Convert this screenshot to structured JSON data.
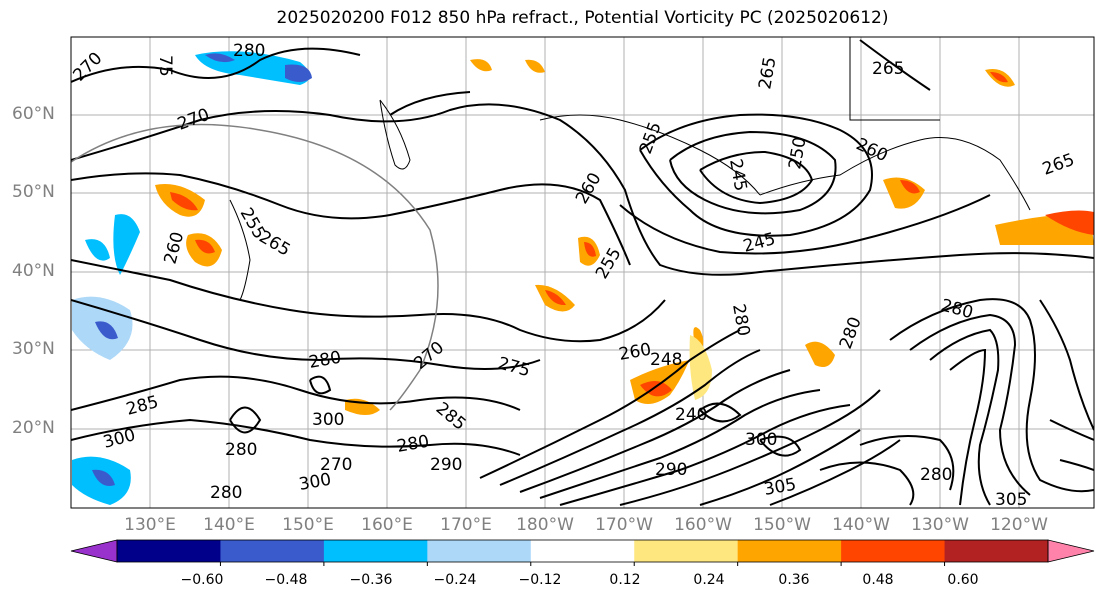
{
  "title": "2025020200 F012 850 hPa refract., Potential Vorticity PC (2025020612)",
  "lat_labels": [
    "60°N",
    "50°N",
    "40°N",
    "30°N",
    "20°N"
  ],
  "lon_labels": [
    "130°E",
    "140°E",
    "150°E",
    "160°E",
    "170°E",
    "180°W",
    "170°W",
    "160°W",
    "150°W",
    "140°W",
    "130°W",
    "120°W"
  ],
  "colorbar": {
    "colors": [
      "#9932CC",
      "#00008B",
      "#3A5BCC",
      "#00BFFF",
      "#ADD8F8",
      "#FFFFFF",
      "#FFE780",
      "#FFA500",
      "#FF4500",
      "#B22222",
      "#FF82AB"
    ],
    "tick_labels": [
      "−0.60",
      "−0.48",
      "−0.36",
      "−0.24",
      "−0.12",
      "0.12",
      "0.24",
      "0.36",
      "0.48",
      "0.60"
    ]
  },
  "contour_labels": [
    "280",
    "270",
    "75",
    "270",
    "265",
    "265",
    "260",
    "250",
    "245",
    "245",
    "255",
    "260",
    "265",
    "255",
    "260",
    "280",
    "280",
    "280",
    "275",
    "270",
    "280",
    "285",
    "300",
    "300",
    "285",
    "280",
    "290",
    "280",
    "260",
    "248",
    "240",
    "300",
    "305",
    "300",
    "280",
    "270",
    "280",
    "305",
    "290",
    "265",
    "255"
  ]
}
